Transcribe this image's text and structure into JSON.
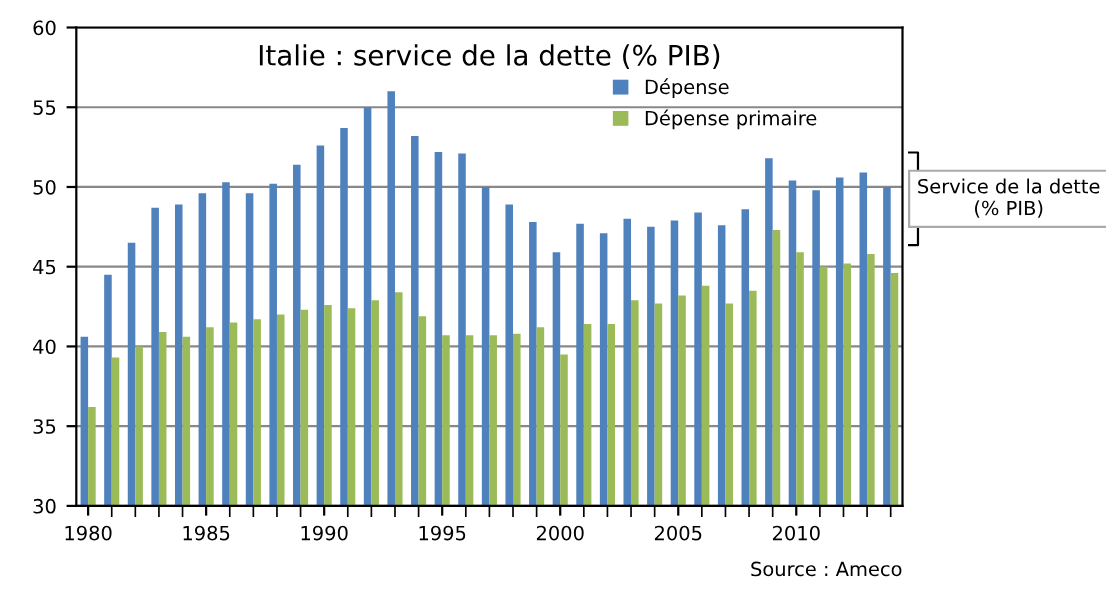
{
  "chart_data": {
    "type": "bar",
    "title": "Italie : service de la dette (% PIB)",
    "categories": [
      "1980",
      null,
      null,
      null,
      null,
      "1985",
      null,
      null,
      null,
      null,
      "1990",
      null,
      null,
      null,
      null,
      "1995",
      null,
      null,
      null,
      null,
      "2000",
      null,
      null,
      null,
      null,
      "2005",
      null,
      null,
      null,
      null,
      "2010",
      null,
      null,
      null,
      null
    ],
    "series": [
      {
        "name": "Dépense",
        "color": "#4f81bd",
        "values": [
          40.6,
          44.5,
          46.5,
          48.7,
          48.9,
          49.6,
          50.3,
          49.6,
          50.2,
          51.4,
          52.6,
          53.7,
          55.0,
          56.0,
          53.2,
          52.2,
          52.1,
          50.0,
          48.9,
          47.8,
          45.9,
          47.7,
          47.1,
          48.0,
          47.5,
          47.9,
          48.4,
          47.6,
          48.6,
          51.8,
          50.4,
          49.8,
          50.6,
          50.9,
          50.0
        ]
      },
      {
        "name": "Dépense primaire",
        "color": "#9bbb59",
        "values": [
          36.2,
          39.3,
          40.0,
          40.9,
          40.6,
          41.2,
          41.5,
          41.7,
          42.0,
          42.3,
          42.6,
          42.4,
          42.9,
          43.4,
          41.9,
          40.7,
          40.7,
          40.7,
          40.8,
          41.2,
          39.5,
          41.4,
          41.4,
          42.9,
          42.7,
          43.2,
          43.8,
          42.7,
          43.5,
          47.3,
          45.9,
          45.0,
          45.2,
          45.8,
          44.6
        ]
      }
    ],
    "ylim": [
      30,
      60
    ],
    "yticks": [
      30,
      35,
      40,
      45,
      50,
      55,
      60
    ],
    "grid": "y",
    "legend": "top right",
    "annotations": [
      "Service de la dette (% PIB)",
      "Source : Ameco"
    ]
  }
}
